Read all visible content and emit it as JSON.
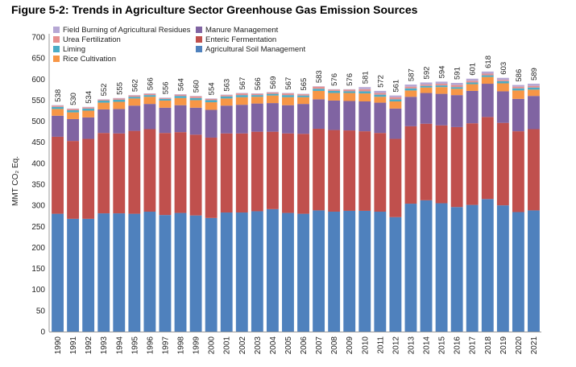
{
  "figure_title": "Figure 5-2:  Trends in Agriculture Sector Greenhouse Gas Emission Sources",
  "chart_data": {
    "type": "bar",
    "stacked": true,
    "title": "",
    "ylabel": "MMT CO₂ Eq.",
    "xlabel": "",
    "ylim": [
      0,
      700
    ],
    "yticks": [
      0,
      50,
      100,
      150,
      200,
      250,
      300,
      350,
      400,
      450,
      500,
      550,
      600,
      650,
      700
    ],
    "grid": false,
    "legend_position": "top-left",
    "categories": [
      "1990",
      "1991",
      "1992",
      "1993",
      "1994",
      "1995",
      "1996",
      "1997",
      "1998",
      "1999",
      "2000",
      "2001",
      "2002",
      "2003",
      "2004",
      "2005",
      "2006",
      "2007",
      "2008",
      "2009",
      "2010",
      "2011",
      "2012",
      "2013",
      "2014",
      "2015",
      "2016",
      "2017",
      "2018",
      "2019",
      "2020",
      "2021"
    ],
    "totals": [
      538,
      530,
      534,
      552,
      555,
      562,
      566,
      556,
      564,
      560,
      554,
      563,
      567,
      566,
      569,
      567,
      565,
      583,
      576,
      576,
      581,
      572,
      561,
      587,
      592,
      594,
      591,
      601,
      618,
      603,
      586,
      589
    ],
    "series": [
      {
        "name": "Agricultural Soil Management",
        "color": "#4f81bd",
        "values": [
          280,
          268,
          268,
          281,
          281,
          280,
          285,
          277,
          282,
          276,
          270,
          283,
          283,
          286,
          291,
          282,
          280,
          288,
          285,
          287,
          287,
          285,
          272,
          304,
          312,
          305,
          296,
          301,
          315,
          300,
          284,
          288
        ]
      },
      {
        "name": "Enteric Fermentation",
        "color": "#c0504d",
        "values": [
          183,
          185,
          190,
          191,
          190,
          197,
          196,
          195,
          192,
          192,
          191,
          188,
          188,
          189,
          184,
          189,
          190,
          194,
          194,
          191,
          189,
          187,
          186,
          184,
          182,
          185,
          190,
          194,
          195,
          196,
          192,
          193
        ]
      },
      {
        "name": "Manure Management",
        "color": "#8064a2",
        "values": [
          50,
          52,
          51,
          56,
          58,
          60,
          60,
          60,
          64,
          64,
          66,
          66,
          68,
          67,
          68,
          67,
          71,
          70,
          70,
          70,
          71,
          72,
          72,
          70,
          73,
          75,
          76,
          77,
          79,
          75,
          77,
          79
        ]
      },
      {
        "name": "Rice Cultivation",
        "color": "#f79646",
        "values": [
          16,
          16,
          16,
          16,
          17,
          17,
          17,
          17,
          17,
          18,
          18,
          17,
          18,
          16,
          18,
          19,
          16,
          20,
          18,
          19,
          19,
          14,
          17,
          15,
          13,
          16,
          15,
          16,
          16,
          19,
          20,
          15
        ]
      },
      {
        "name": "Liming",
        "color": "#4bacc6",
        "values": [
          5,
          5,
          5,
          5,
          5,
          4,
          4,
          4,
          5,
          5,
          5,
          5,
          5,
          4,
          4,
          5,
          4,
          5,
          5,
          4,
          5,
          5,
          5,
          5,
          4,
          4,
          4,
          4,
          4,
          5,
          5,
          5
        ]
      },
      {
        "name": "Urea Fertilization",
        "color": "#e6908e",
        "values": [
          3,
          3,
          3,
          2,
          3,
          3,
          3,
          2,
          3,
          4,
          3,
          3,
          4,
          3,
          3,
          4,
          3,
          5,
          3,
          4,
          5,
          4,
          5,
          4,
          3,
          4,
          5,
          4,
          4,
          3,
          4,
          4
        ]
      },
      {
        "name": "Field Burning of Agricultural Residues",
        "color": "#b6a7d4",
        "values": [
          1,
          1,
          1,
          1,
          1,
          1,
          1,
          1,
          1,
          1,
          1,
          1,
          1,
          1,
          1,
          1,
          1,
          1,
          1,
          1,
          5,
          5,
          4,
          5,
          5,
          5,
          5,
          5,
          5,
          5,
          4,
          5
        ]
      }
    ],
    "legend": [
      {
        "name": "Field Burning of Agricultural Residues",
        "color": "#b6a7d4"
      },
      {
        "name": "Manure Management",
        "color": "#8064a2"
      },
      {
        "name": "Urea Fertilization",
        "color": "#e6908e"
      },
      {
        "name": "Enteric Fermentation",
        "color": "#c0504d"
      },
      {
        "name": "Liming",
        "color": "#4bacc6"
      },
      {
        "name": "Agricultural Soil Management",
        "color": "#4f81bd"
      },
      {
        "name": "Rice Cultivation",
        "color": "#f79646"
      }
    ]
  }
}
